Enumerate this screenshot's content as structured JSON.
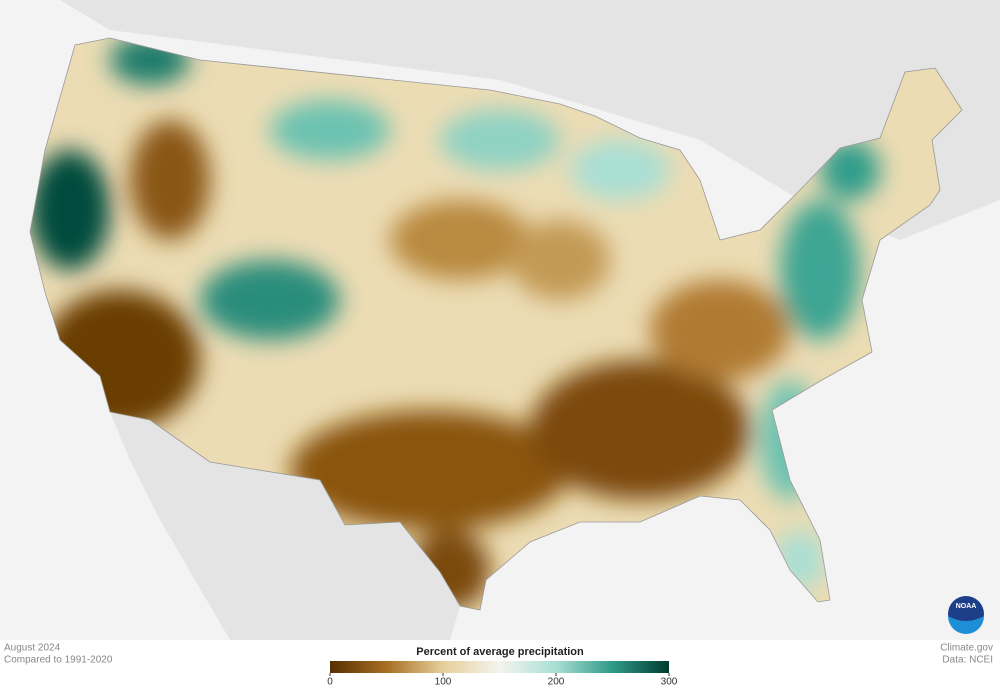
{
  "footer": {
    "date": "August 2024",
    "baseline": "Compared to 1991-2020",
    "source": "Climate.gov",
    "data_credit": "Data: NCEI"
  },
  "legend": {
    "title": "Percent of average precipitation",
    "range": [
      0,
      300
    ],
    "ticks": [
      0,
      100,
      200,
      300
    ],
    "colors": [
      "#553000",
      "#a86e22",
      "#e6cf9a",
      "#f4f4ee",
      "#a9dfd4",
      "#2f9a88",
      "#003b2f"
    ]
  },
  "logo": {
    "text": "NOAA"
  }
}
